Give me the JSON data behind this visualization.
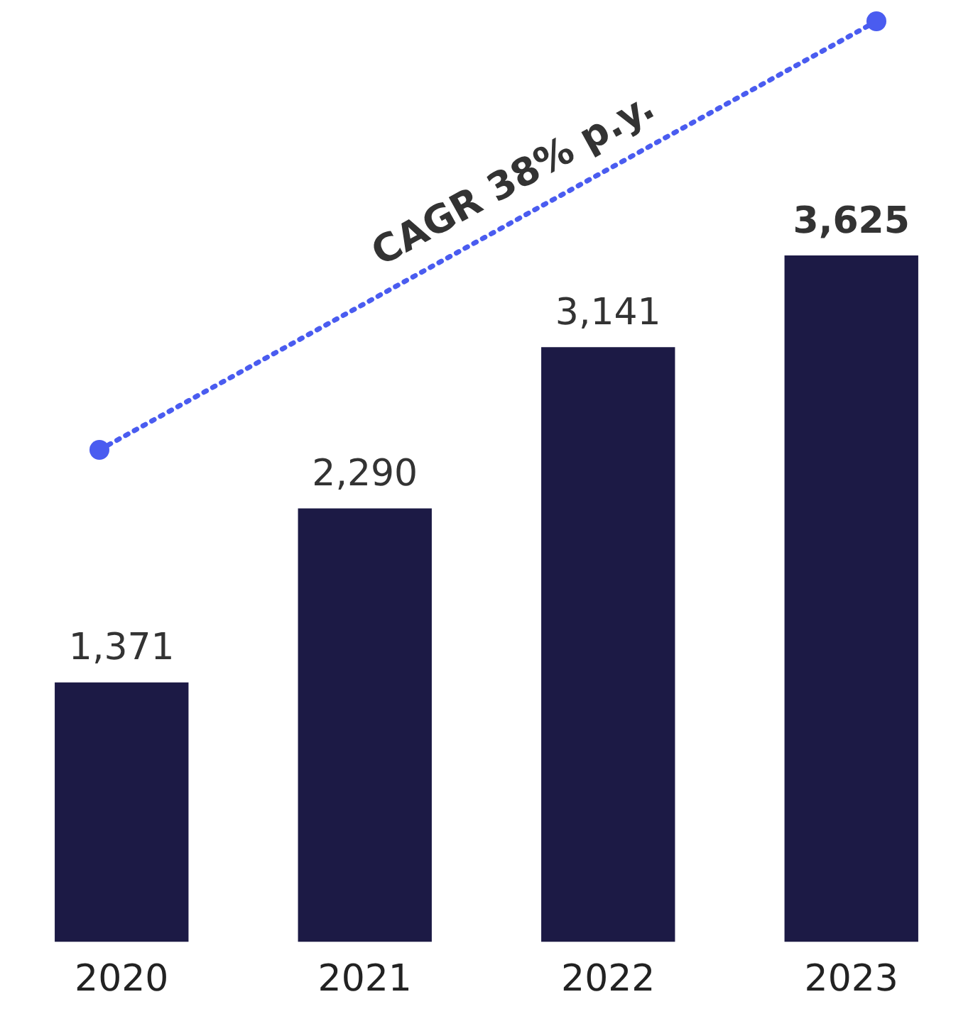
{
  "chart_data": {
    "type": "bar",
    "categories": [
      "2020",
      "2021",
      "2022",
      "2023"
    ],
    "values": [
      1371,
      2290,
      3141,
      3625
    ],
    "value_labels": [
      "1,371",
      "2,290",
      "3,141",
      "3,625"
    ],
    "color": "#1c1a45",
    "legend": false,
    "grid": false,
    "annotations": [
      "CAGR 38% p.y."
    ]
  }
}
